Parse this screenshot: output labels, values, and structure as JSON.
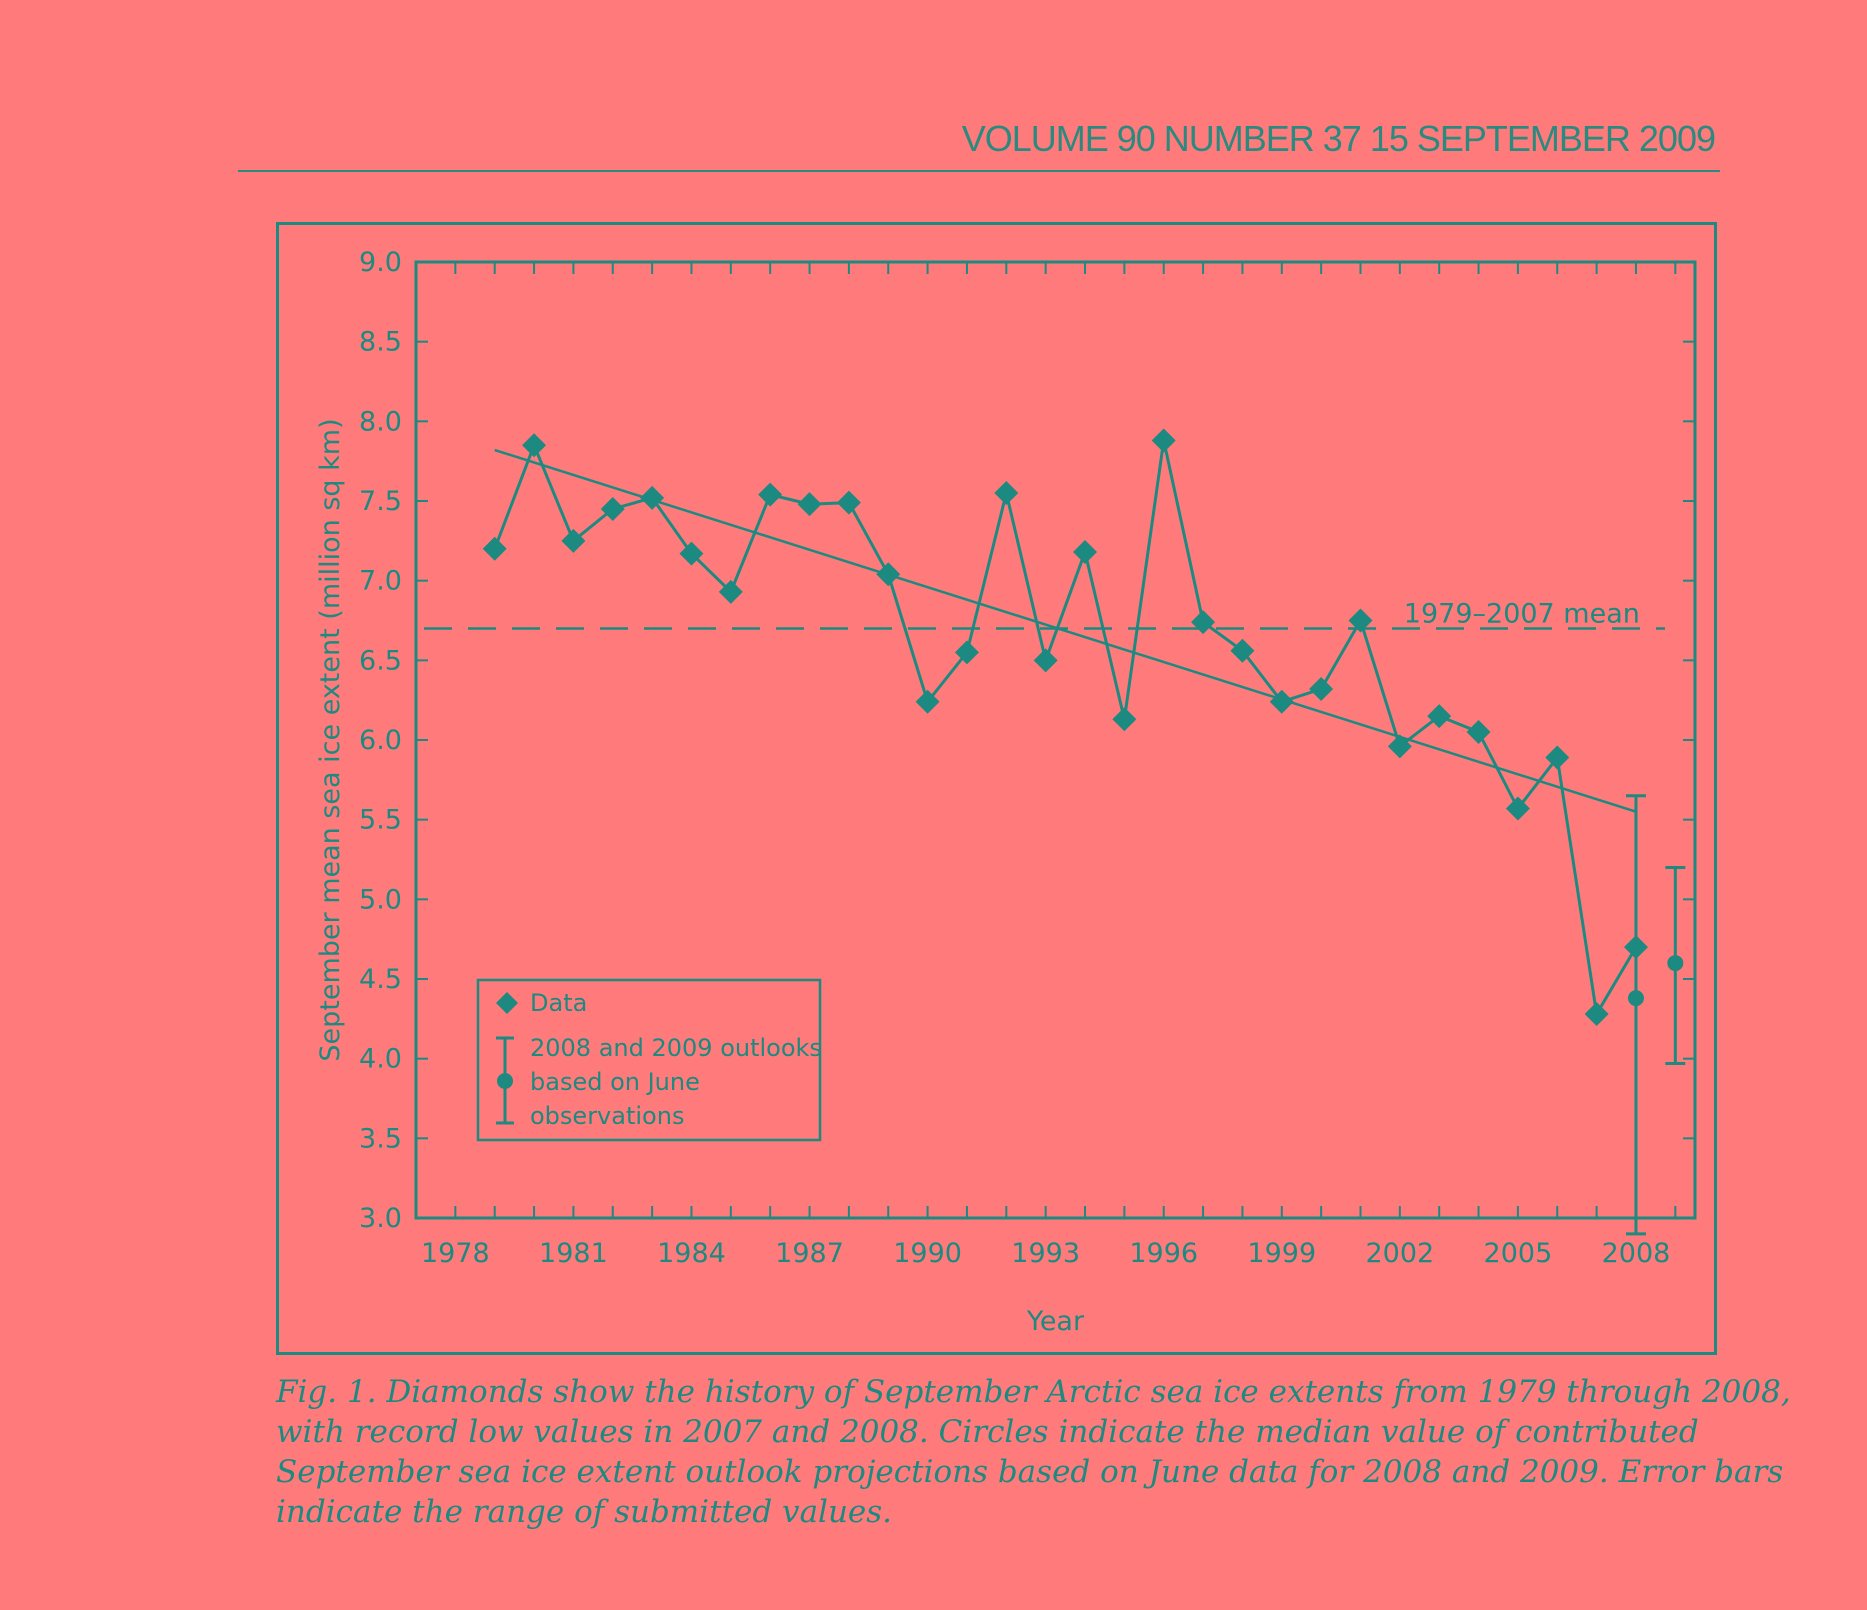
{
  "header": {
    "text": "VOLUME 90  NUMBER 37  15 SEPTEMBER 2009"
  },
  "caption": {
    "lines": [
      "Fig. 1. Diamonds show the history of September Arctic sea ice extents from 1979 through 2008,",
      "with record low values in 2007 and 2008. Circles indicate the median value of contributed",
      "September sea ice extent outlook projections based on June data for 2008 and 2009. Error bars",
      "indicate the range of submitted values."
    ]
  },
  "colors": {
    "background": "#ff7b7b",
    "ink": "#1c8a80"
  },
  "chart_data": {
    "type": "line",
    "title": "",
    "xlabel": "Year",
    "ylabel": "September mean sea ice extent (million sq km)",
    "xlim": [
      1977,
      2009.5
    ],
    "ylim": [
      3.0,
      9.0
    ],
    "x_ticks": [
      "1978",
      "1981",
      "1984",
      "1987",
      "1990",
      "1993",
      "1996",
      "1999",
      "2002",
      "2005",
      "2008"
    ],
    "y_ticks": [
      "3.0",
      "3.5",
      "4.0",
      "4.5",
      "5.0",
      "5.5",
      "6.0",
      "6.5",
      "7.0",
      "7.5",
      "8.0",
      "8.5",
      "9.0"
    ],
    "series": [
      {
        "name": "Data",
        "marker": "diamond",
        "x": [
          1979,
          1980,
          1981,
          1982,
          1983,
          1984,
          1985,
          1986,
          1987,
          1988,
          1989,
          1990,
          1991,
          1992,
          1993,
          1994,
          1995,
          1996,
          1997,
          1998,
          1999,
          2000,
          2001,
          2002,
          2003,
          2004,
          2005,
          2006,
          2007,
          2008
        ],
        "y": [
          7.2,
          7.85,
          7.25,
          7.45,
          7.52,
          7.17,
          6.93,
          7.54,
          7.48,
          7.49,
          7.04,
          6.24,
          6.55,
          7.55,
          6.5,
          7.18,
          6.13,
          7.88,
          6.74,
          6.56,
          6.24,
          6.32,
          6.75,
          5.96,
          6.15,
          6.05,
          5.57,
          5.89,
          4.28,
          4.7
        ]
      }
    ],
    "trend_line": {
      "x": [
        1979,
        2008
      ],
      "y": [
        7.82,
        5.55
      ]
    },
    "mean_line": {
      "label": "1979–2007 mean",
      "y": 6.7
    },
    "outlooks": {
      "name": "2008 and 2009 outlooks based on June observations",
      "points": [
        {
          "x": 2008,
          "median": 4.38,
          "low": 2.9,
          "high": 5.65
        },
        {
          "x": 2009,
          "median": 4.6,
          "low": 3.97,
          "high": 5.2
        }
      ]
    },
    "legend": {
      "position": "bottom-left",
      "entries": [
        "Data",
        "2008 and 2009 outlooks",
        "based on June",
        "observations"
      ]
    },
    "grid": false
  }
}
